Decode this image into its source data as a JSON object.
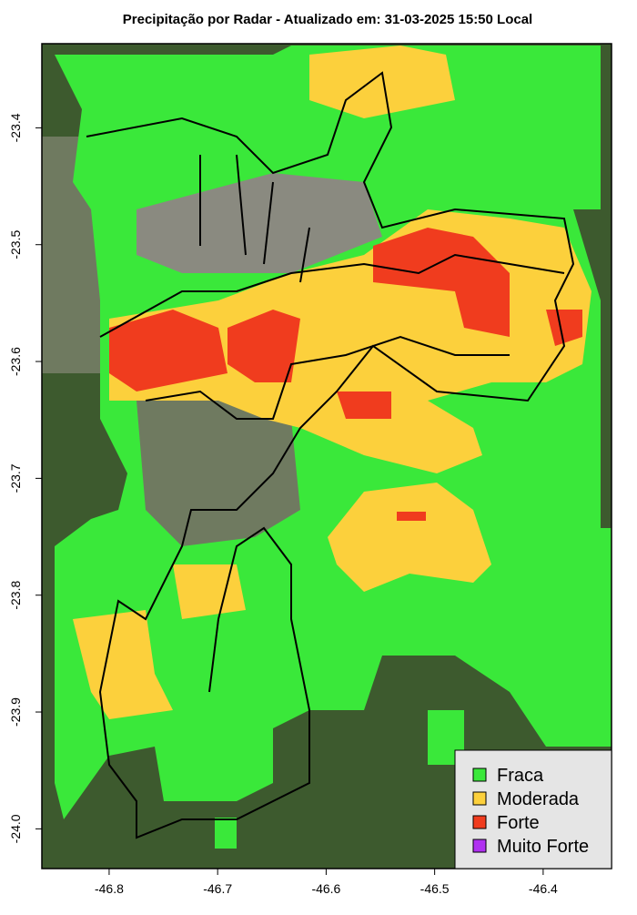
{
  "chart_data": {
    "type": "map",
    "title": "Precipitação por Radar - Atualizado em: 31-03-2025 15:50 Local",
    "xlim": [
      -46.862,
      -46.337
    ],
    "ylim": [
      -24.034,
      -23.328
    ],
    "xticks": [
      -46.8,
      -46.7,
      -46.6,
      -46.5,
      -46.4
    ],
    "yticks": [
      {
        "value": -24,
        "label": "-24.0"
      },
      -23.9,
      -23.8,
      -23.7,
      -23.6,
      -23.5,
      -23.4
    ],
    "legend": [
      {
        "name": "Fraca",
        "color": "#3ae83a"
      },
      {
        "name": "Moderada",
        "color": "#fcd03c"
      },
      {
        "name": "Forte",
        "color": "#f03c1e"
      },
      {
        "name": "Muito Forte",
        "color": "#b030f0"
      }
    ],
    "legend_position": "bottom-right"
  }
}
